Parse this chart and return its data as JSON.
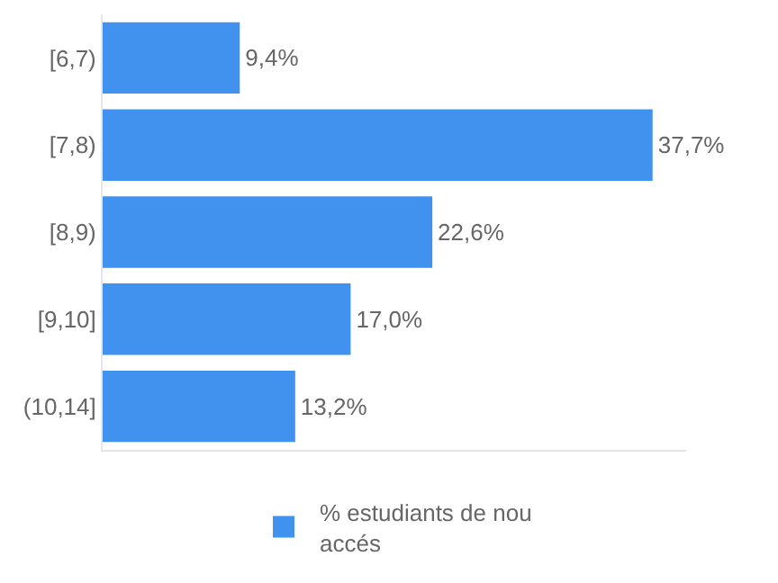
{
  "chart_data": {
    "type": "bar",
    "orientation": "horizontal",
    "categories": [
      "[6,7)",
      "[7,8)",
      "[8,9)",
      "[9,10]",
      "(10,14]"
    ],
    "series": [
      {
        "name": "% estudiants de nou accés",
        "color": "#4191ee",
        "values": [
          9.4,
          37.7,
          22.6,
          17.0,
          13.2
        ],
        "value_labels": [
          "9,4%",
          "37,7%",
          "22,6%",
          "17,0%",
          "13,2%"
        ]
      }
    ],
    "xlim": [
      0,
      40
    ],
    "tick_labels": "y",
    "legend": "bottom"
  }
}
